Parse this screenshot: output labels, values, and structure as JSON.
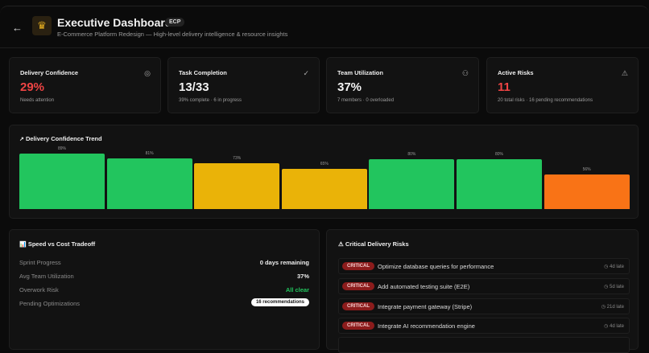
{
  "header": {
    "title": "Executive Dashboard",
    "badge": "ECP",
    "subtitle": "E-Commerce Platform Redesign — High-level delivery intelligence & resource insights"
  },
  "cards": [
    {
      "label": "Delivery Confidence",
      "value": "29%",
      "sub": "Needs attention",
      "icon": "target-icon",
      "value_color": "#ef4444"
    },
    {
      "label": "Task Completion",
      "value": "13/33",
      "sub": "39% complete · 6 in progress",
      "icon": "check-circle-icon",
      "value_color": "#f2f2f2"
    },
    {
      "label": "Team Utilization",
      "value": "37%",
      "sub": "7 members · 0 overloaded",
      "icon": "users-icon",
      "value_color": "#f2f2f2"
    },
    {
      "label": "Active Risks",
      "value": "11",
      "sub": "20 total risks · 16 pending recommendations",
      "icon": "warning-icon",
      "value_color": "#ef4444"
    }
  ],
  "trend": {
    "title": "Delivery Confidence Trend"
  },
  "chart_data": {
    "type": "bar",
    "ylim": [
      0,
      100
    ],
    "values": [
      89,
      81,
      73,
      65,
      80,
      80,
      56
    ],
    "labels": [
      "89%",
      "81%",
      "73%",
      "65%",
      "80%",
      "80%",
      "56%"
    ],
    "colors": [
      "#22c55e",
      "#22c55e",
      "#eab308",
      "#eab308",
      "#22c55e",
      "#22c55e",
      "#f97316"
    ]
  },
  "tradeoff": {
    "title": "Speed vs Cost Tradeoff",
    "rows": [
      {
        "label": "Sprint Progress",
        "value": "0 days remaining"
      },
      {
        "label": "Avg Team Utilization",
        "value": "37%"
      },
      {
        "label": "Overwork Risk",
        "value": "All clear"
      },
      {
        "label": "Pending Optimizations",
        "value": "16 recommendations"
      }
    ]
  },
  "risks": {
    "title": "Critical Delivery Risks",
    "items": [
      {
        "severity": "CRITICAL",
        "title": "Optimize database queries for performance",
        "late": "4d late"
      },
      {
        "severity": "CRITICAL",
        "title": "Add automated testing suite (E2E)",
        "late": "5d late"
      },
      {
        "severity": "CRITICAL",
        "title": "Integrate payment gateway (Stripe)",
        "late": "21d late"
      },
      {
        "severity": "CRITICAL",
        "title": "Integrate AI recommendation engine",
        "late": "4d late"
      }
    ]
  }
}
